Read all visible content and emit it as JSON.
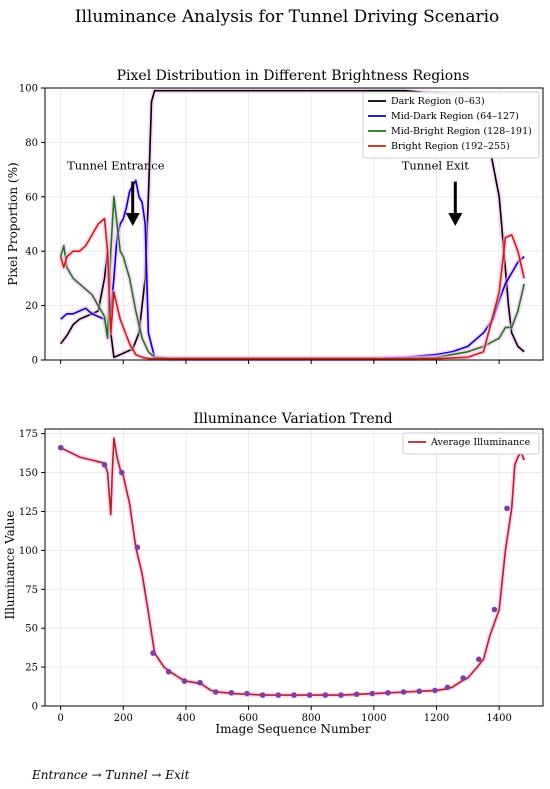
{
  "figure": {
    "title": "Illuminance Analysis for Tunnel Driving Scenario",
    "caption": "Entrance → Tunnel → Exit"
  },
  "chart_data": [
    {
      "type": "line",
      "title": "Pixel Distribution in Different Brightness Regions",
      "xlabel": "",
      "ylabel": "Pixel Proportion (%)",
      "xlim": [
        -50,
        1540
      ],
      "ylim": [
        0,
        100
      ],
      "xticks": [
        0,
        200,
        400,
        600,
        800,
        1000,
        1200,
        1400
      ],
      "yticks": [
        0,
        20,
        40,
        60,
        80,
        100
      ],
      "grid": true,
      "legend_position": "top-right",
      "series": [
        {
          "name": "Dark Region (0–63)",
          "color": "#000000",
          "x": [
            0,
            20,
            40,
            60,
            80,
            100,
            120,
            140,
            150,
            160,
            170,
            190,
            210,
            230,
            250,
            270,
            280,
            290,
            300,
            350,
            400,
            600,
            800,
            1000,
            1100,
            1200,
            1300,
            1350,
            1400,
            1430,
            1440,
            1460,
            1480
          ],
          "y": [
            6,
            9,
            13,
            15,
            16,
            17,
            18,
            30,
            40,
            10,
            1,
            2,
            3,
            4,
            10,
            30,
            60,
            95,
            99,
            99,
            99,
            99,
            99,
            99,
            99,
            98,
            97,
            90,
            60,
            20,
            10,
            5,
            3
          ]
        },
        {
          "name": "Mid-Dark Region (64–127)",
          "color": "#0000cc",
          "x": [
            0,
            20,
            40,
            60,
            80,
            100,
            120,
            140,
            150,
            160,
            170,
            180,
            190,
            200,
            210,
            220,
            230,
            240,
            250,
            260,
            270,
            280,
            300,
            350,
            400,
            600,
            800,
            1000,
            1100,
            1200,
            1250,
            1300,
            1350,
            1380,
            1400,
            1420,
            1440,
            1460,
            1480
          ],
          "y": [
            15,
            17,
            17,
            18,
            19,
            17,
            16,
            15,
            10,
            18,
            30,
            45,
            50,
            52,
            56,
            62,
            64,
            66,
            60,
            58,
            50,
            10,
            1,
            0.5,
            0.5,
            0.5,
            0.5,
            0.5,
            1,
            2,
            3,
            5,
            10,
            15,
            22,
            28,
            32,
            36,
            38
          ]
        },
        {
          "name": "Mid-Bright Region (128–191)",
          "color": "#1a7a1a",
          "x": [
            0,
            10,
            20,
            40,
            60,
            80,
            100,
            120,
            140,
            150,
            160,
            170,
            180,
            190,
            200,
            220,
            240,
            260,
            280,
            300,
            350,
            400,
            600,
            800,
            1000,
            1100,
            1200,
            1300,
            1350,
            1400,
            1420,
            1440,
            1460,
            1480
          ],
          "y": [
            38,
            42,
            34,
            30,
            28,
            26,
            24,
            20,
            16,
            8,
            40,
            60,
            50,
            40,
            38,
            30,
            18,
            8,
            3,
            1,
            0.5,
            0.5,
            0.5,
            0.5,
            0.5,
            0.5,
            1,
            3,
            5,
            8,
            12,
            12,
            18,
            28
          ]
        },
        {
          "name": "Bright Region (192–255)",
          "color": "#cc2200",
          "x": [
            0,
            10,
            20,
            40,
            60,
            80,
            100,
            120,
            140,
            150,
            160,
            170,
            180,
            190,
            200,
            220,
            240,
            260,
            280,
            300,
            350,
            400,
            600,
            800,
            1000,
            1100,
            1200,
            1300,
            1350,
            1400,
            1410,
            1420,
            1440,
            1460,
            1480
          ],
          "y": [
            38,
            34,
            38,
            40,
            40,
            42,
            46,
            50,
            52,
            40,
            10,
            25,
            20,
            15,
            12,
            6,
            2,
            1,
            0.5,
            0.5,
            0.5,
            0.5,
            0.5,
            0.5,
            0.5,
            0.5,
            0.5,
            1,
            3,
            25,
            35,
            45,
            46,
            40,
            30
          ]
        }
      ],
      "annotations": [
        {
          "text": "Tunnel Entrance",
          "x": 240,
          "y": 70,
          "arrow_to": [
            230,
            50
          ]
        },
        {
          "text": "Tunnel Exit",
          "x": 1260,
          "y": 70,
          "arrow_to": [
            1260,
            50
          ]
        }
      ]
    },
    {
      "type": "line",
      "title": "Illuminance Variation Trend",
      "xlabel": "Image Sequence Number",
      "ylabel": "Illuminance Value",
      "xlim": [
        -50,
        1540
      ],
      "ylim": [
        0,
        178
      ],
      "xticks": [
        0,
        200,
        400,
        600,
        800,
        1000,
        1200,
        1400
      ],
      "yticks": [
        0,
        25,
        50,
        75,
        100,
        125,
        150,
        175
      ],
      "grid": true,
      "legend_position": "top-right",
      "series": [
        {
          "name": "Average Illuminance",
          "color": "#b22222",
          "x": [
            0,
            20,
            40,
            60,
            80,
            100,
            120,
            140,
            150,
            160,
            165,
            170,
            180,
            190,
            200,
            220,
            240,
            260,
            280,
            300,
            330,
            350,
            380,
            400,
            430,
            450,
            480,
            500,
            530,
            550,
            600,
            650,
            700,
            750,
            800,
            850,
            900,
            950,
            1000,
            1050,
            1100,
            1150,
            1200,
            1230,
            1250,
            1280,
            1300,
            1330,
            1350,
            1370,
            1400,
            1420,
            1440,
            1450,
            1460,
            1470,
            1480
          ],
          "y": [
            166,
            164,
            162,
            160,
            159,
            158,
            157,
            156,
            150,
            123,
            150,
            172,
            160,
            152,
            148,
            130,
            102,
            85,
            60,
            34,
            25,
            22,
            18,
            16,
            15,
            14,
            10,
            9,
            8.5,
            8,
            7.5,
            7,
            7,
            7,
            7,
            7,
            7,
            7.5,
            8,
            8.5,
            9,
            9.5,
            10,
            11,
            12,
            16,
            18,
            25,
            30,
            45,
            62,
            100,
            127,
            155,
            160,
            163,
            158
          ]
        }
      ],
      "markers": {
        "x": [
          0,
          140,
          195,
          245,
          295,
          345,
          395,
          445,
          495,
          545,
          595,
          645,
          695,
          745,
          795,
          845,
          895,
          945,
          995,
          1045,
          1095,
          1145,
          1195,
          1235,
          1285,
          1335,
          1385,
          1425
        ],
        "y": [
          166,
          155,
          150,
          102,
          34,
          22,
          16,
          15,
          9,
          8.5,
          8,
          7,
          7,
          7,
          7,
          7,
          7,
          7.5,
          8,
          8.5,
          9,
          9.5,
          10,
          12,
          18,
          30,
          62,
          127
        ],
        "color": "#7b3fa8"
      }
    }
  ]
}
